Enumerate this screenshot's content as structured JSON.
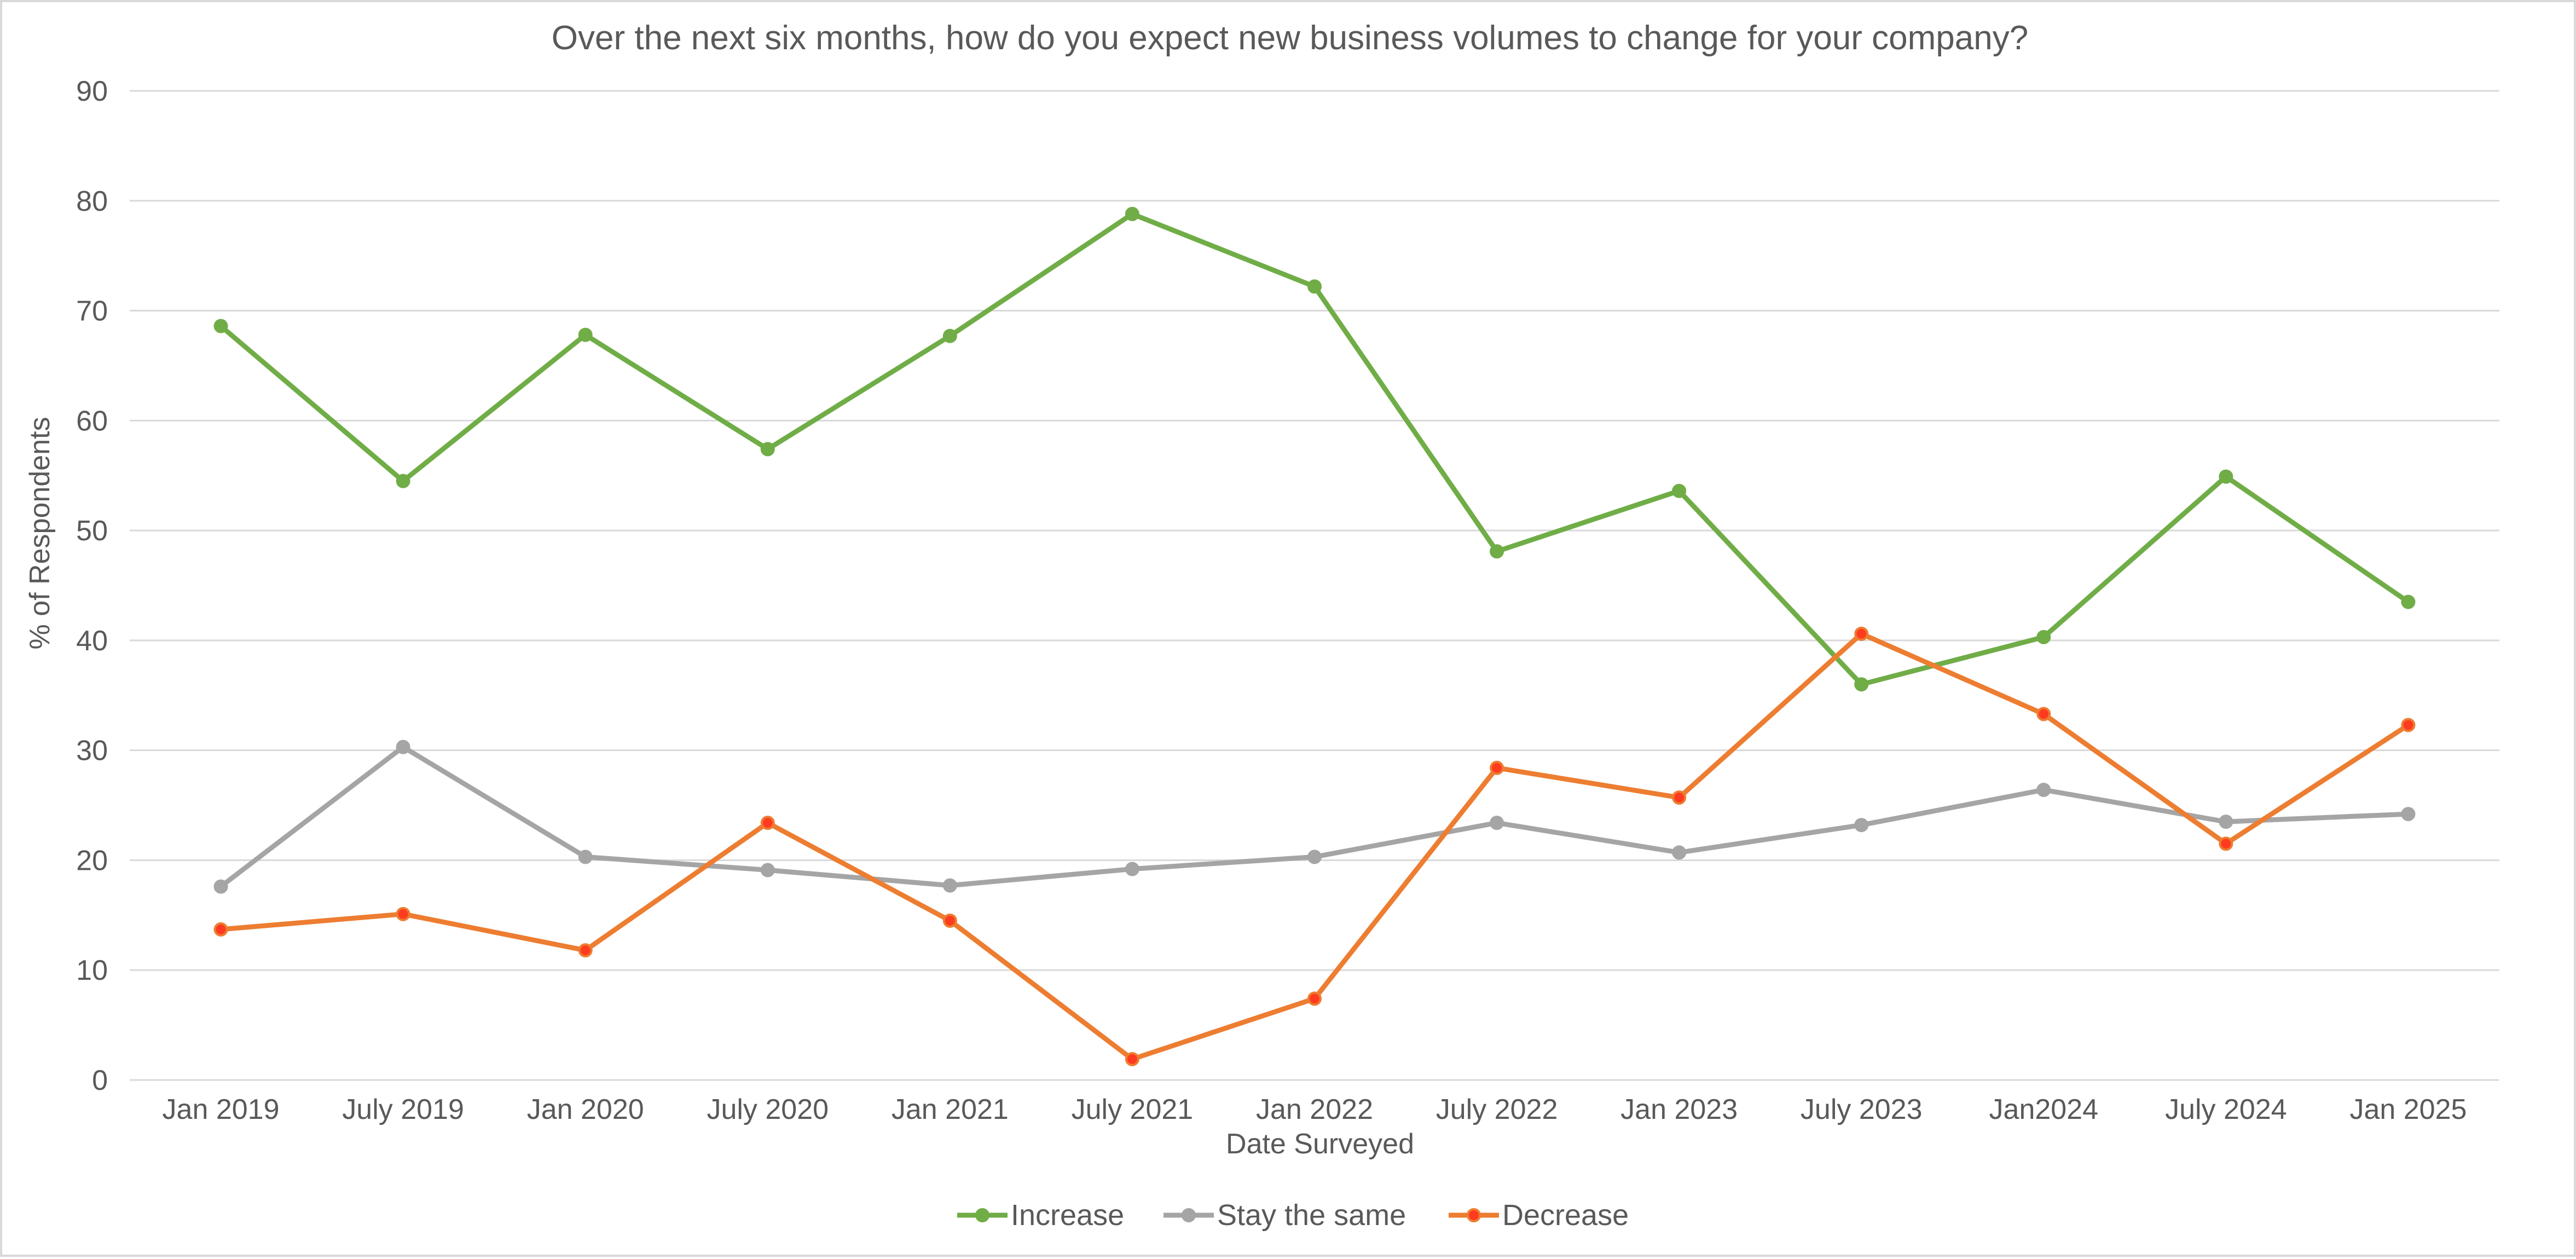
{
  "chart_data": {
    "type": "line",
    "title": "Over the next six months, how do you expect new business volumes to change for your company?",
    "xlabel": "Date Surveyed",
    "ylabel": "% of Respondents",
    "ylim": [
      0,
      90
    ],
    "yticks": [
      0,
      10,
      20,
      30,
      40,
      50,
      60,
      70,
      80,
      90
    ],
    "categories": [
      "Jan 2019",
      "July 2019",
      "Jan 2020",
      "July 2020",
      "Jan 2021",
      "July 2021",
      "Jan 2022",
      "July 2022",
      "Jan 2023",
      "July 2023",
      "Jan2024",
      "July 2024",
      "Jan 2025"
    ],
    "grid": "horizontal",
    "legend_position": "bottom-center",
    "series": [
      {
        "name": "Increase",
        "color": "#70ad47",
        "marker_fill": "#70ad47",
        "values": [
          68.6,
          54.5,
          67.8,
          57.4,
          67.7,
          78.8,
          72.2,
          48.1,
          53.6,
          36.0,
          40.3,
          54.9,
          43.5
        ]
      },
      {
        "name": "Stay the same",
        "color": "#a5a5a5",
        "marker_fill": "#a5a5a5",
        "values": [
          17.6,
          30.3,
          20.3,
          19.1,
          17.7,
          19.2,
          20.3,
          23.4,
          20.7,
          23.2,
          26.4,
          23.5,
          24.2
        ]
      },
      {
        "name": "Decrease",
        "color": "#ed7d31",
        "marker_fill": "#ff3b1f",
        "values": [
          13.7,
          15.1,
          11.8,
          23.4,
          14.5,
          1.9,
          7.4,
          28.4,
          25.7,
          40.6,
          33.3,
          21.5,
          32.3
        ]
      }
    ]
  }
}
